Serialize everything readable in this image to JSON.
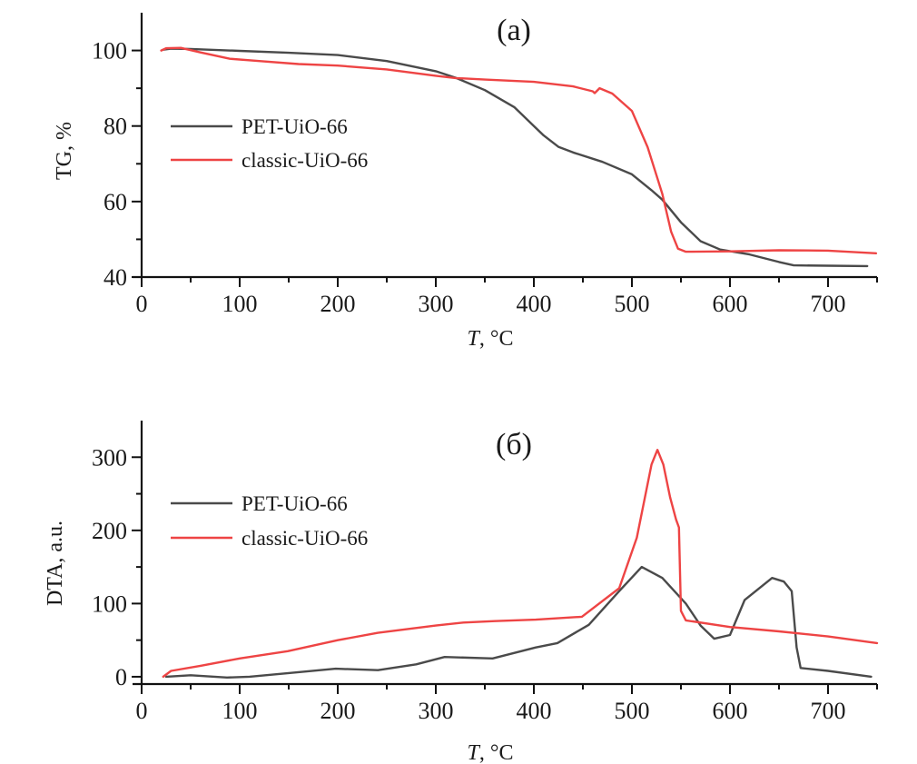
{
  "chart_data": [
    {
      "type": "line",
      "panel_label": "(a)",
      "title": "",
      "xlabel_italic": "T",
      "xlabel_rest": ", °C",
      "ylabel": "TG, %",
      "xlim": [
        0,
        750
      ],
      "ylim": [
        40,
        110
      ],
      "xticks": [
        0,
        100,
        200,
        300,
        400,
        500,
        600,
        700
      ],
      "yticks": [
        40,
        60,
        80,
        100
      ],
      "yminor": [
        50,
        70,
        90
      ],
      "xminor": [
        50,
        150,
        250,
        350,
        450,
        550,
        650,
        750
      ],
      "grid": false,
      "legend_position": "center-left",
      "series": [
        {
          "name": "PET-UiO-66",
          "color": "#4a4a4a",
          "points": [
            [
              22,
              100.2
            ],
            [
              30,
              100.5
            ],
            [
              50,
              100.4
            ],
            [
              100,
              99.9
            ],
            [
              150,
              99.4
            ],
            [
              200,
              98.8
            ],
            [
              250,
              97.2
            ],
            [
              300,
              94.5
            ],
            [
              320,
              92.8
            ],
            [
              350,
              89.5
            ],
            [
              380,
              85
            ],
            [
              400,
              80
            ],
            [
              410,
              77.5
            ],
            [
              425,
              74.5
            ],
            [
              440,
              73
            ],
            [
              470,
              70.5
            ],
            [
              500,
              67.2
            ],
            [
              520,
              63
            ],
            [
              531,
              60.5
            ],
            [
              550,
              54.5
            ],
            [
              570,
              49.5
            ],
            [
              590,
              47.3
            ],
            [
              620,
              46
            ],
            [
              650,
              44
            ],
            [
              665,
              43.1
            ],
            [
              700,
              43
            ],
            [
              740,
              42.9
            ]
          ]
        },
        {
          "name": "classic-UiO-66",
          "color": "#ee4444",
          "points": [
            [
              20,
              100
            ],
            [
              25,
              100.6
            ],
            [
              40,
              100.7
            ],
            [
              60,
              99.5
            ],
            [
              90,
              97.8
            ],
            [
              120,
              97.2
            ],
            [
              160,
              96.4
            ],
            [
              200,
              96
            ],
            [
              250,
              95
            ],
            [
              300,
              93.3
            ],
            [
              320,
              92.7
            ],
            [
              350,
              92.3
            ],
            [
              400,
              91.7
            ],
            [
              440,
              90.5
            ],
            [
              460,
              89.2
            ],
            [
              462,
              88.7
            ],
            [
              467,
              90
            ],
            [
              480,
              88.6
            ],
            [
              500,
              84
            ],
            [
              516,
              74.4
            ],
            [
              525,
              67
            ],
            [
              531,
              62
            ],
            [
              540,
              52
            ],
            [
              547,
              47.5
            ],
            [
              555,
              46.7
            ],
            [
              600,
              46.8
            ],
            [
              650,
              47.1
            ],
            [
              700,
              47
            ],
            [
              749,
              46.3
            ]
          ]
        }
      ]
    },
    {
      "type": "line",
      "panel_label": "(б)",
      "title": "",
      "xlabel_italic": "T",
      "xlabel_rest": ", °C",
      "ylabel": "DTA, a.u.",
      "xlim": [
        0,
        750
      ],
      "ylim": [
        -10,
        350
      ],
      "xticks": [
        0,
        100,
        200,
        300,
        400,
        500,
        600,
        700
      ],
      "yticks": [
        0,
        100,
        200,
        300
      ],
      "yminor": [
        50,
        150,
        250
      ],
      "xminor": [
        50,
        150,
        250,
        350,
        450,
        550,
        650,
        750
      ],
      "grid": false,
      "legend_position": "top-left",
      "series": [
        {
          "name": "PET-UiO-66",
          "color": "#4a4a4a",
          "points": [
            [
              25,
              0
            ],
            [
              50,
              2
            ],
            [
              87,
              -1
            ],
            [
              110,
              0
            ],
            [
              150,
              5
            ],
            [
              198,
              11
            ],
            [
              241,
              9
            ],
            [
              280,
              17
            ],
            [
              309,
              27
            ],
            [
              358,
              25
            ],
            [
              402,
              40
            ],
            [
              424,
              46
            ],
            [
              456,
              71
            ],
            [
              487,
              117
            ],
            [
              510,
              150
            ],
            [
              531,
              135
            ],
            [
              555,
              100
            ],
            [
              570,
              70
            ],
            [
              584,
              52
            ],
            [
              600,
              57
            ],
            [
              615,
              105
            ],
            [
              643,
              135
            ],
            [
              655,
              130
            ],
            [
              663,
              117
            ],
            [
              668,
              40
            ],
            [
              672,
              12
            ],
            [
              700,
              8
            ],
            [
              744,
              0
            ]
          ]
        },
        {
          "name": "classic-UiO-66",
          "color": "#ee4444",
          "points": [
            [
              22,
              0
            ],
            [
              30,
              8
            ],
            [
              60,
              15
            ],
            [
              100,
              25
            ],
            [
              149,
              35
            ],
            [
              200,
              50
            ],
            [
              241,
              60
            ],
            [
              300,
              70
            ],
            [
              328,
              74
            ],
            [
              360,
              76
            ],
            [
              402,
              78
            ],
            [
              449,
              82
            ],
            [
              487,
              121
            ],
            [
              505,
              190
            ],
            [
              520,
              290
            ],
            [
              526,
              310
            ],
            [
              532,
              290
            ],
            [
              539,
              245
            ],
            [
              545,
              215
            ],
            [
              548,
              204
            ],
            [
              550,
              90
            ],
            [
              555,
              77
            ],
            [
              600,
              68
            ],
            [
              650,
              62
            ],
            [
              700,
              55
            ],
            [
              750,
              46
            ]
          ]
        }
      ]
    }
  ]
}
